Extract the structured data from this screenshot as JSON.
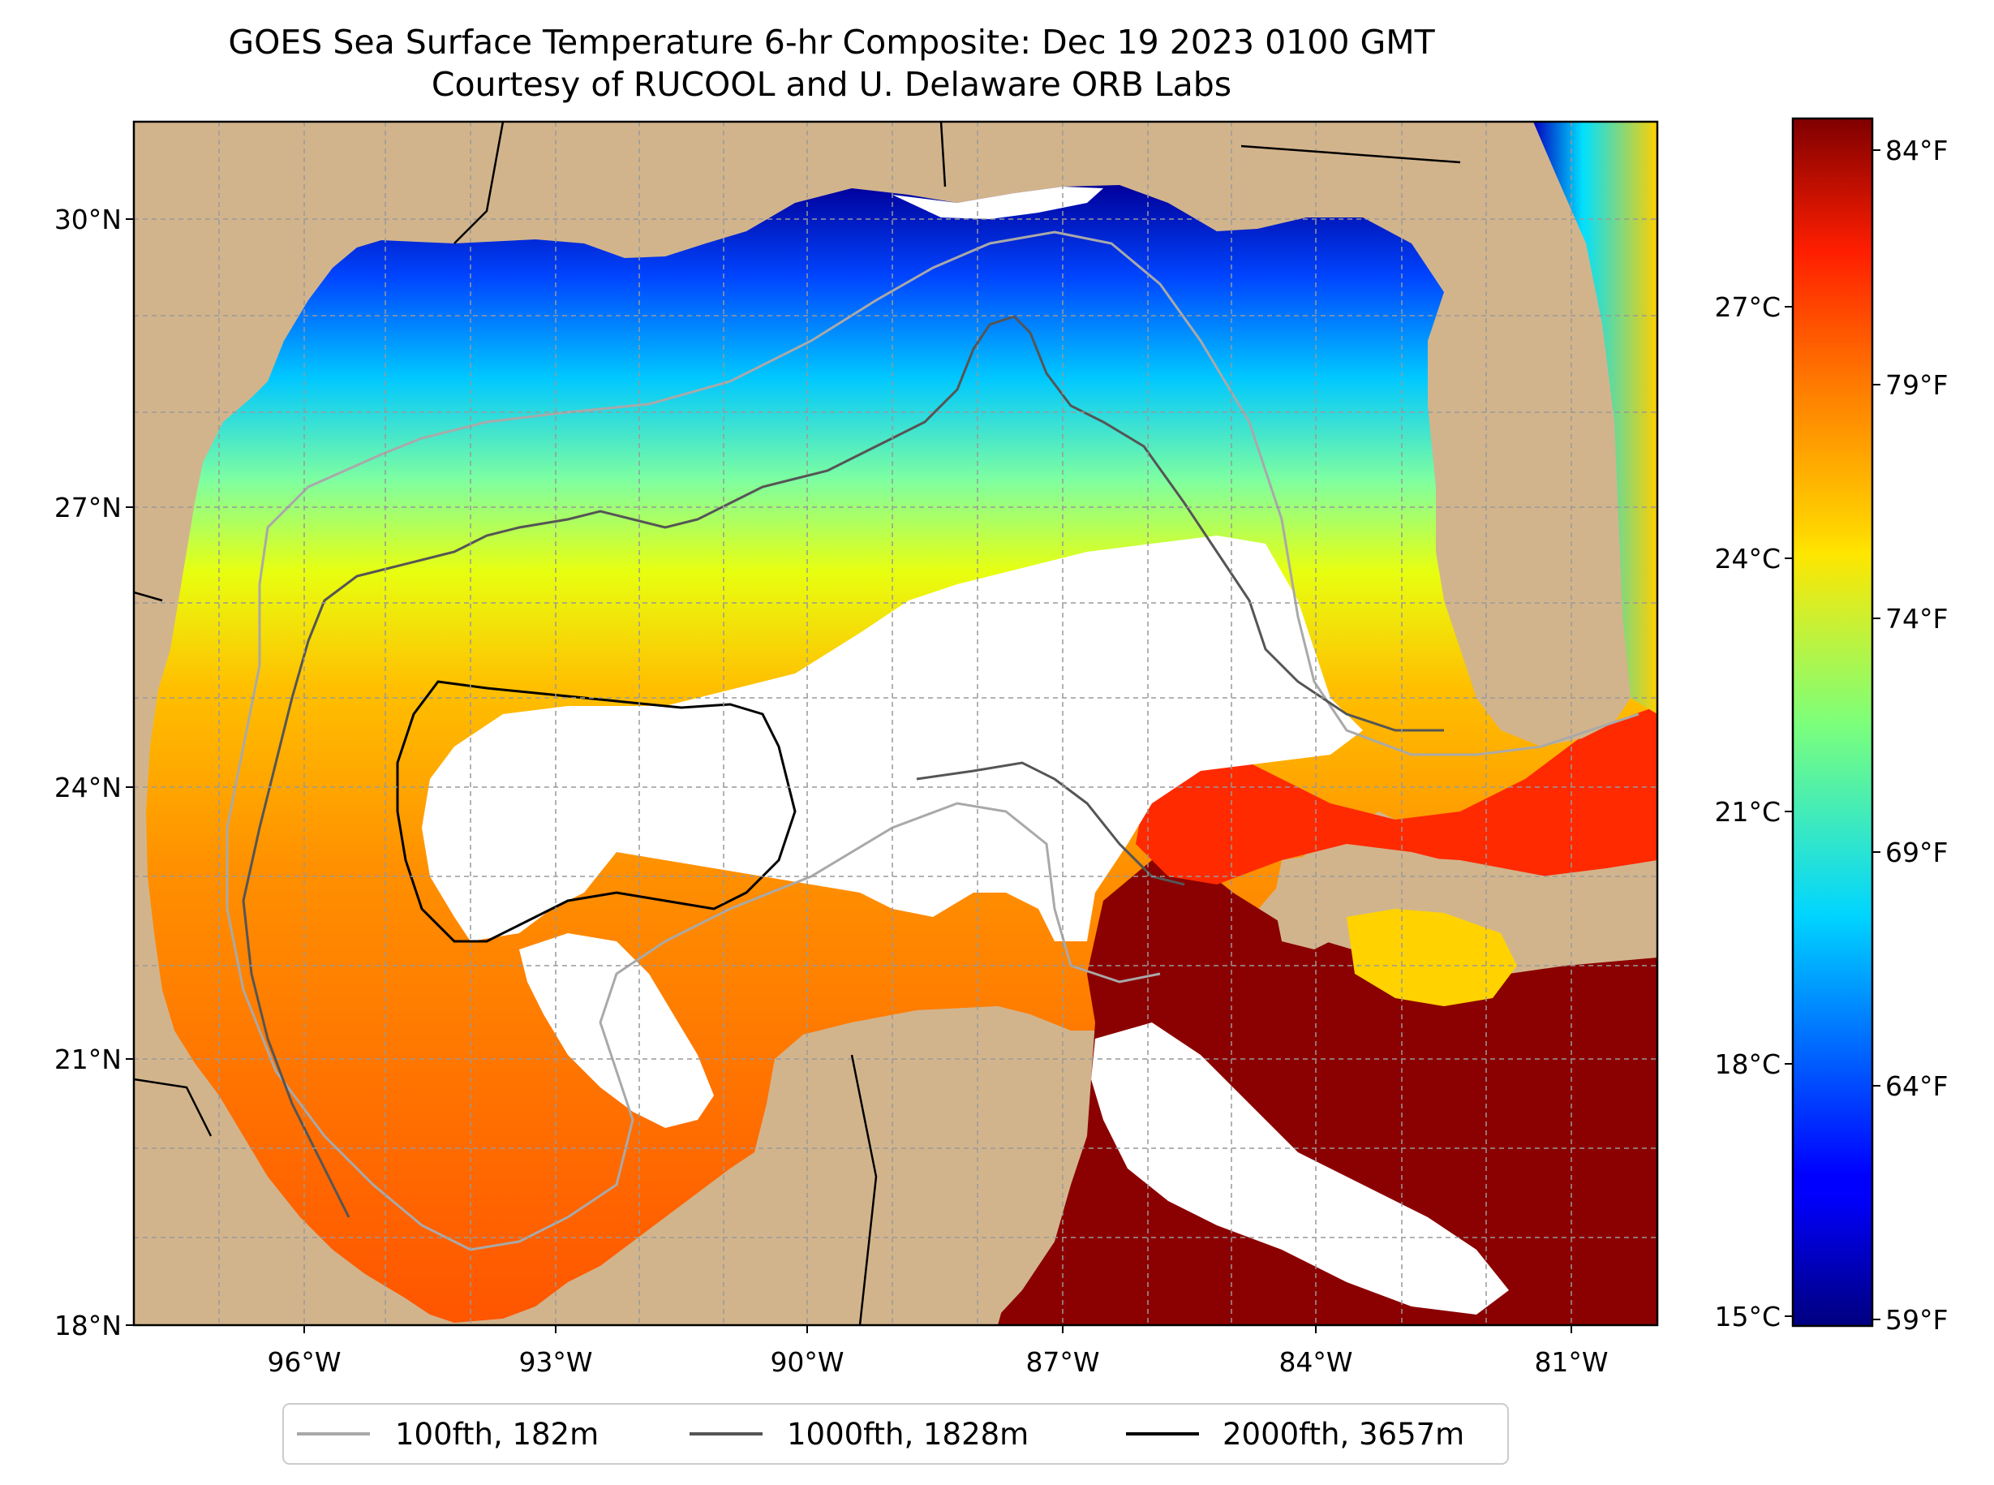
{
  "title": {
    "line1": "GOES Sea Surface Temperature 6-hr Composite: Dec 19 2023 0100 GMT",
    "line2": "Courtesy of RUCOOL and U. Delaware ORB Labs"
  },
  "map": {
    "lat_labels": [
      "30°N",
      "27°N",
      "24°N",
      "21°N",
      "18°N"
    ],
    "lon_labels": [
      "96°W",
      "93°W",
      "90°W",
      "87°W",
      "84°W",
      "81°W"
    ],
    "extent": {
      "lon_min": -98,
      "lon_max": -80.5,
      "lat_min": 18,
      "lat_max": 31
    },
    "colors": {
      "land": "#d2b48c",
      "no_data": "#ffffff",
      "grid": "#999999"
    }
  },
  "colorbar": {
    "celsius_labels": [
      "27°C",
      "24°C",
      "21°C",
      "18°C",
      "15°C"
    ],
    "fahrenheit_labels": [
      "84°F",
      "79°F",
      "74°F",
      "69°F",
      "64°F",
      "59°F"
    ],
    "colormap": "jet"
  },
  "legend": {
    "items": [
      {
        "label": "100fth, 182m",
        "color": "#a9a9a9"
      },
      {
        "label": "1000fth, 1828m",
        "color": "#555555"
      },
      {
        "label": "2000fth, 3657m",
        "color": "#000000"
      }
    ]
  }
}
